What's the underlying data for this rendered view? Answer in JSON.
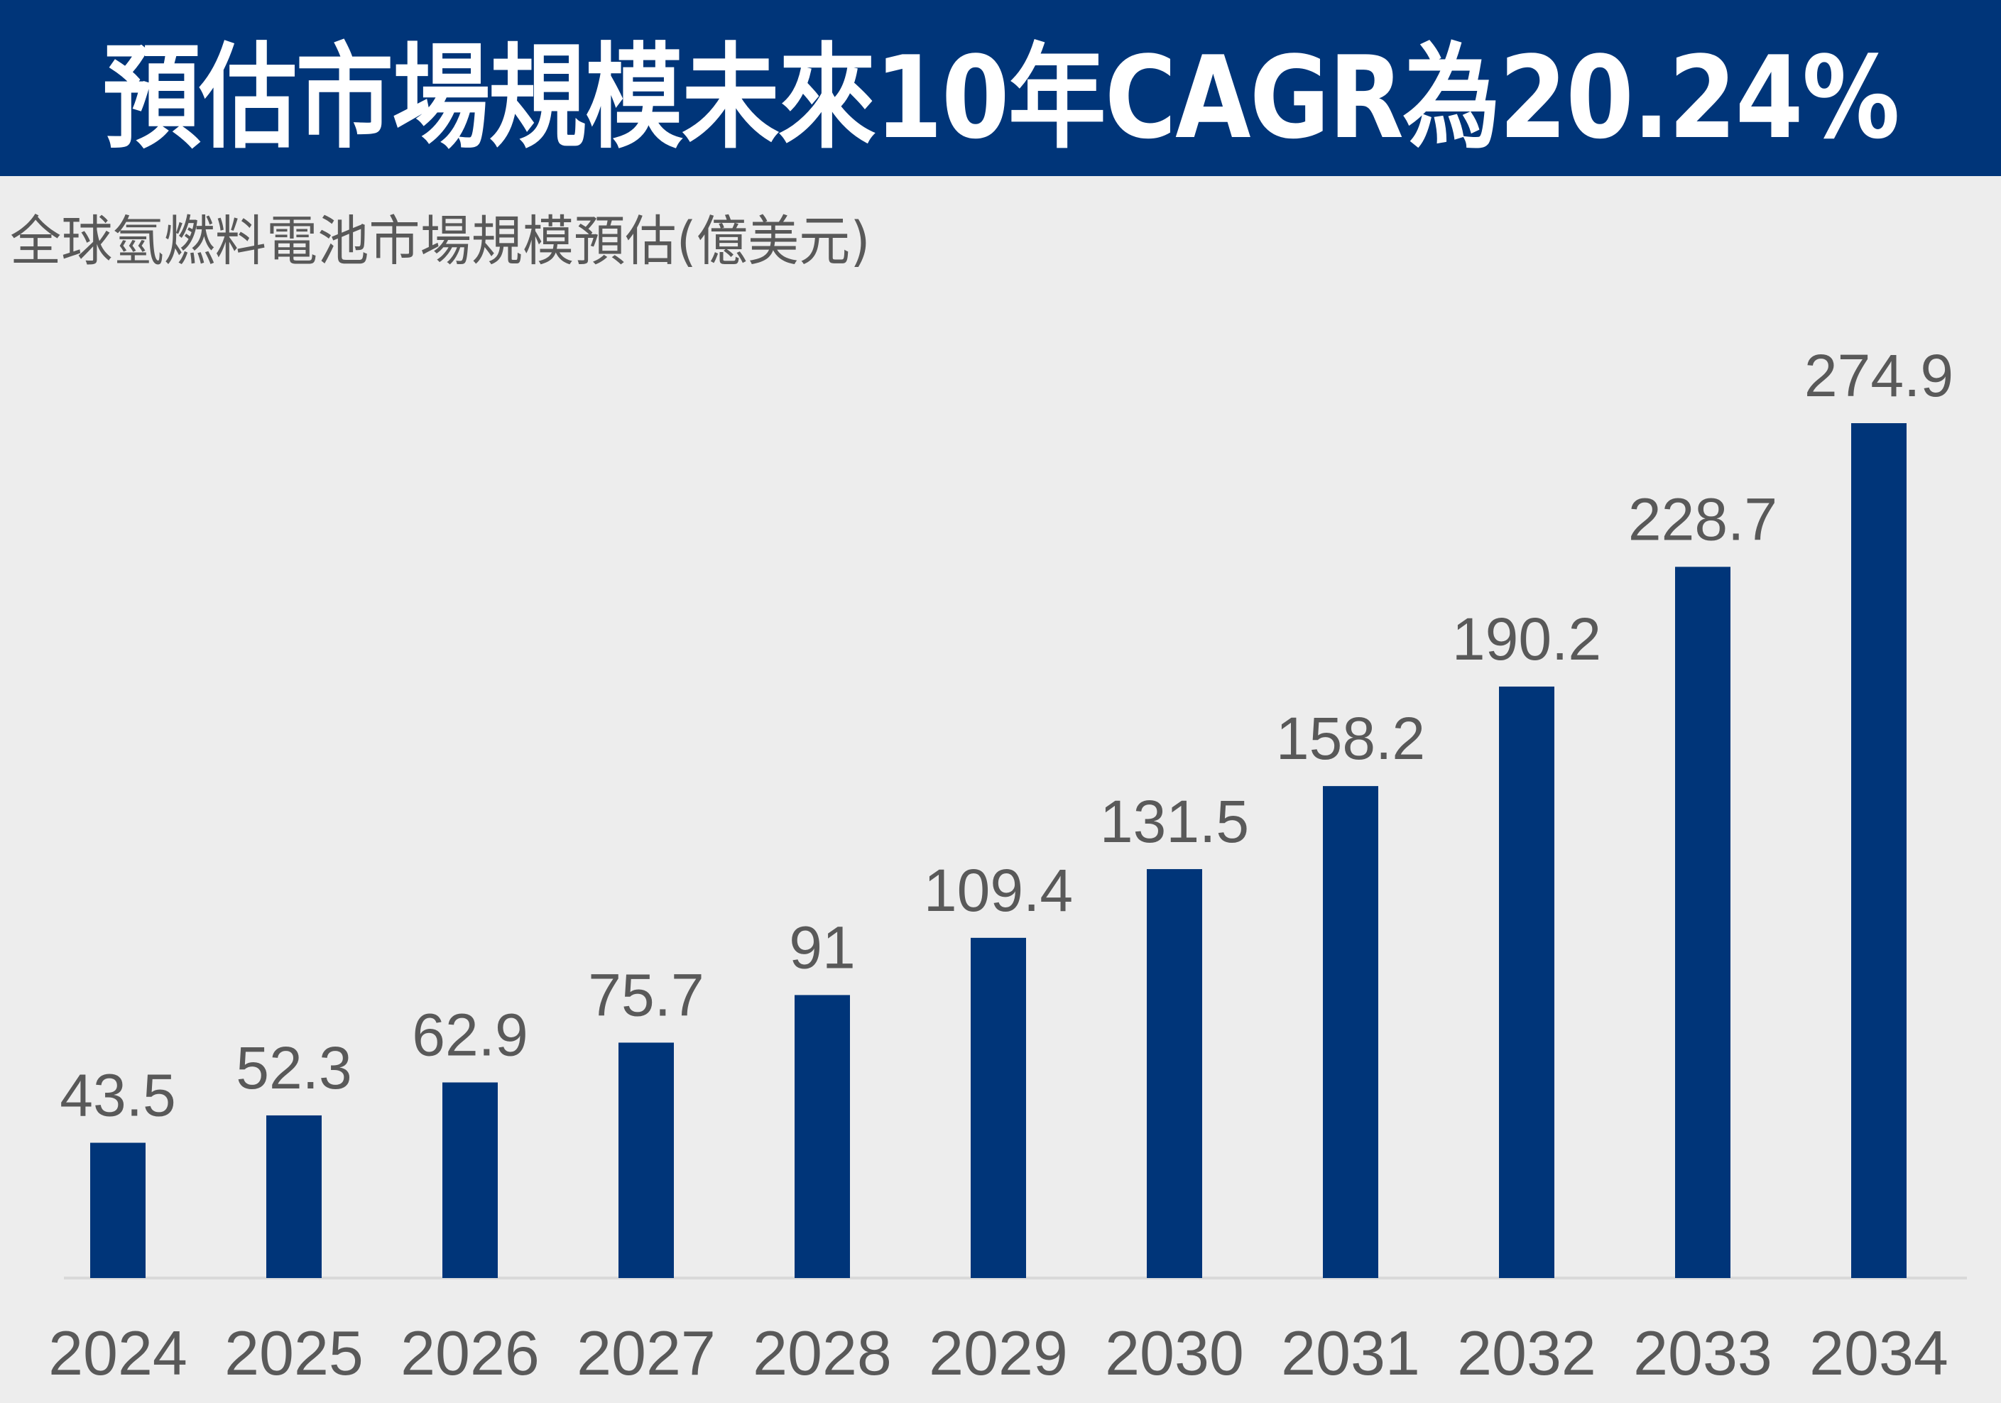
{
  "header": {
    "title": "預估市場規模未來10年CAGR為20.24%"
  },
  "colors": {
    "header_bg": "#003579",
    "bar": "#003579",
    "background": "#ededed",
    "text": "#595959",
    "axis": "#d9d9d9"
  },
  "chart_data": {
    "type": "bar",
    "title": "預估市場規模未來10年CAGR為20.24%",
    "subtitle": "全球氫燃料電池市場規模預估(億美元)",
    "xlabel": "",
    "ylabel": "",
    "categories": [
      "2024",
      "2025",
      "2026",
      "2027",
      "2028",
      "2029",
      "2030",
      "2031",
      "2032",
      "2033",
      "2034"
    ],
    "values": [
      43.5,
      52.3,
      62.9,
      75.7,
      91,
      109.4,
      131.5,
      158.2,
      190.2,
      228.7,
      274.9
    ],
    "data_labels": [
      "43.5",
      "52.3",
      "62.9",
      "75.7",
      "91",
      "109.4",
      "131.5",
      "158.2",
      "190.2",
      "228.7",
      "274.9"
    ],
    "ylim": [
      0,
      274.9
    ],
    "grid": false,
    "legend": "none"
  }
}
